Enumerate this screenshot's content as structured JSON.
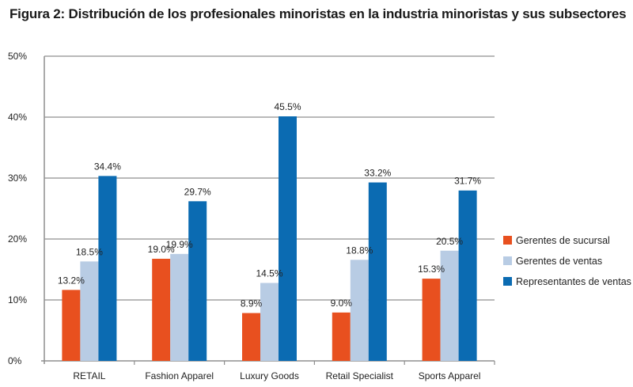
{
  "chart_data": {
    "type": "bar",
    "title": "Figura 2: Distribución de los profesionales minoristas en la industria minoristas y sus subsectores",
    "xlabel": "",
    "ylabel": "",
    "ylim": [
      0,
      50
    ],
    "yticks": [
      "0%",
      "10%",
      "20%",
      "30%",
      "40%",
      "50%"
    ],
    "grid": true,
    "legend_position": "right",
    "categories": [
      "RETAIL",
      "Fashion Apparel",
      "Luxury Goods",
      "Retail Specialist",
      "Sports Apparel"
    ],
    "series": [
      {
        "name": "Gerentes de sucursal",
        "color": "#e8501f",
        "values": [
          13.2,
          19.0,
          8.9,
          9.0,
          15.3
        ],
        "labels": [
          "13.2%",
          "19.0%",
          "8.9%",
          "9.0%",
          "15.3%"
        ]
      },
      {
        "name": "Gerentes de ventas",
        "color": "#b8cce4",
        "values": [
          18.5,
          19.9,
          14.5,
          18.8,
          20.5
        ],
        "labels": [
          "18.5%",
          "19.9%",
          "14.5%",
          "18.8%",
          "20.5%"
        ]
      },
      {
        "name": "Representantes de ventas",
        "color": "#0b6bb2",
        "values": [
          34.4,
          29.7,
          45.5,
          33.2,
          31.7
        ],
        "labels": [
          "34.4%",
          "29.7%",
          "45.5%",
          "33.2%",
          "31.7%"
        ]
      }
    ]
  }
}
